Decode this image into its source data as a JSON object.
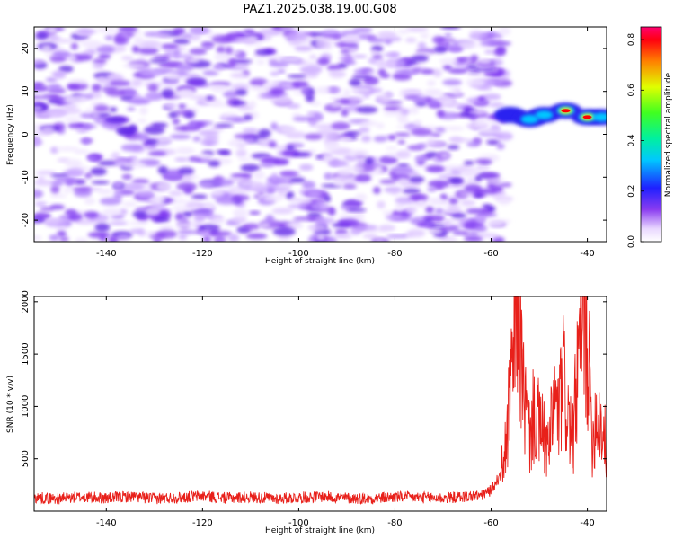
{
  "title": "PAZ1.2025.038.19.00.G08",
  "colors": {
    "snr_line": "#e8201a",
    "spectrogram_noise": "#7a33f0",
    "spectrogram_signal_low": "#2030ff",
    "spectrogram_signal_mid": "#00e0e0",
    "spectrogram_signal_high": "#ff0000"
  },
  "chart_data": [
    {
      "type": "heatmap",
      "title": "PAZ1.2025.038.19.00.G08",
      "xlabel": "Height of straight line (km)",
      "ylabel": "Frequency (Hz)",
      "xlim": [
        -155,
        -36
      ],
      "ylim": [
        -25,
        25
      ],
      "x_ticks": [
        -140,
        -120,
        -100,
        -80,
        -60,
        -40
      ],
      "y_ticks": [
        20,
        10,
        0,
        -10,
        -20
      ],
      "grid": false,
      "noise_region": {
        "x_range": [
          -155,
          -57
        ],
        "amplitude": 0.07
      },
      "signal_features": [
        {
          "x": -56,
          "y": 4.5,
          "amplitude": 0.15
        },
        {
          "x": -52,
          "y": 3.5,
          "amplitude": 0.3
        },
        {
          "x": -49,
          "y": 4.5,
          "amplitude": 0.35
        },
        {
          "x": -44.5,
          "y": 5.5,
          "amplitude": 0.85
        },
        {
          "x": -40,
          "y": 4,
          "amplitude": 0.85
        },
        {
          "x": -37,
          "y": 4,
          "amplitude": 0.3
        }
      ],
      "colorbar": {
        "label": "Normalized spectral amplitude",
        "range": [
          0.0,
          0.85
        ],
        "ticks": [
          "0.0",
          "0.2",
          "0.4",
          "0.6",
          "0.8"
        ]
      }
    },
    {
      "type": "line",
      "xlabel": "Height of straight line (km)",
      "ylabel": "SNR (10 * v/v)",
      "xlim": [
        -155,
        -36
      ],
      "ylim": [
        0,
        2050
      ],
      "x_ticks": [
        -140,
        -120,
        -100,
        -80,
        -60,
        -40
      ],
      "y_ticks": [
        2000,
        1500,
        1000,
        500
      ],
      "grid": false,
      "series": [
        {
          "x": [
            -155,
            -150,
            -145,
            -140,
            -135,
            -130,
            -125,
            -120,
            -115,
            -110,
            -105,
            -100,
            -95,
            -90,
            -85,
            -80,
            -75,
            -70,
            -65,
            -62,
            -60,
            -58,
            -57,
            -56,
            -55,
            -54.5,
            -54,
            -53,
            -52,
            -51,
            -50,
            -49,
            -48,
            -47,
            -46,
            -45,
            -44,
            -43,
            -42,
            -41,
            -40.5,
            -40,
            -39,
            -38,
            -37,
            -36
          ],
          "values": [
            130,
            120,
            135,
            125,
            140,
            120,
            130,
            145,
            125,
            135,
            120,
            130,
            140,
            125,
            120,
            135,
            130,
            125,
            140,
            150,
            200,
            350,
            600,
            1100,
            1700,
            2050,
            1650,
            1000,
            700,
            950,
            800,
            700,
            550,
            1050,
            900,
            1250,
            900,
            650,
            1350,
            1750,
            1950,
            1650,
            700,
            950,
            800,
            600
          ]
        }
      ]
    }
  ]
}
